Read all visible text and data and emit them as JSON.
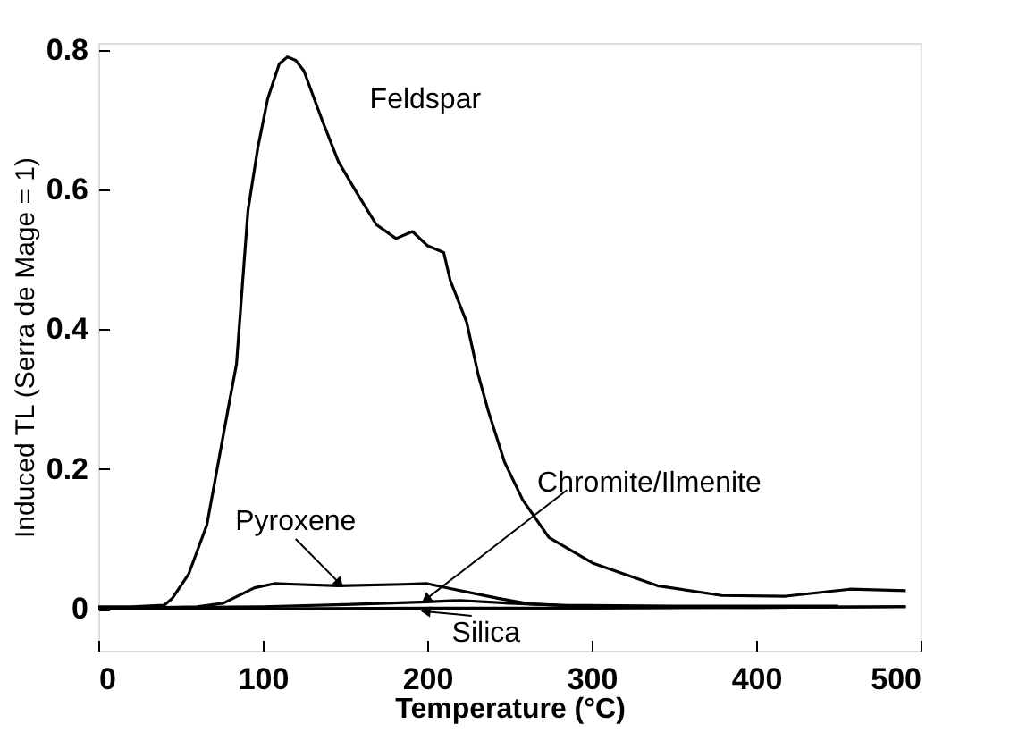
{
  "chart_data": {
    "type": "line",
    "xlabel": "Temperature (°C)",
    "ylabel": "Induced TL (Serra de Mage = 1)",
    "xlim": [
      0,
      500
    ],
    "ylim": [
      -0.06,
      0.81
    ],
    "xticks": [
      0,
      100,
      200,
      300,
      400,
      500
    ],
    "yticks": [
      0,
      0.2,
      0.4,
      0.6,
      0.8
    ],
    "grid": false,
    "line_style": "solid",
    "marker": "none",
    "series": [
      {
        "name": "Feldspar",
        "color": "#000000",
        "x": [
          0,
          20,
          40,
          45,
          55,
          66,
          80,
          84,
          91,
          97,
          103,
          110,
          115,
          120,
          125,
          136,
          146,
          156,
          169,
          181,
          191,
          200,
          210,
          214,
          224,
          231,
          237,
          247,
          258,
          274,
          301,
          340,
          379,
          418,
          457,
          491
        ],
        "values": [
          0.003,
          0.003,
          0.005,
          0.015,
          0.05,
          0.12,
          0.3,
          0.35,
          0.57,
          0.66,
          0.73,
          0.78,
          0.79,
          0.785,
          0.77,
          0.7,
          0.64,
          0.6,
          0.55,
          0.53,
          0.54,
          0.52,
          0.51,
          0.47,
          0.41,
          0.335,
          0.284,
          0.21,
          0.156,
          0.102,
          0.065,
          0.033,
          0.019,
          0.018,
          0.028,
          0.026
        ]
      },
      {
        "name": "Pyroxene",
        "color": "#000000",
        "x": [
          0,
          40,
          60,
          76,
          95,
          107,
          120,
          146,
          185,
          200,
          216,
          243,
          262,
          301,
          400,
          491
        ],
        "values": [
          0.002,
          0.002,
          0.003,
          0.008,
          0.03,
          0.036,
          0.035,
          0.033,
          0.035,
          0.036,
          0.028,
          0.015,
          0.007,
          0.003,
          0.002,
          0.003
        ]
      },
      {
        "name": "Chromite/Ilmenite",
        "color": "#000000",
        "x": [
          60,
          100,
          150,
          200,
          220,
          250,
          280,
          350,
          450
        ],
        "values": [
          0.002,
          0.003,
          0.006,
          0.01,
          0.012,
          0.008,
          0.005,
          0.004,
          0.004
        ]
      },
      {
        "name": "Silica",
        "color": "#000000",
        "x": [
          0,
          100,
          200,
          300,
          400,
          491
        ],
        "values": [
          0.0,
          0.0,
          0.001,
          0.001,
          0.002,
          0.003
        ]
      }
    ]
  }
}
